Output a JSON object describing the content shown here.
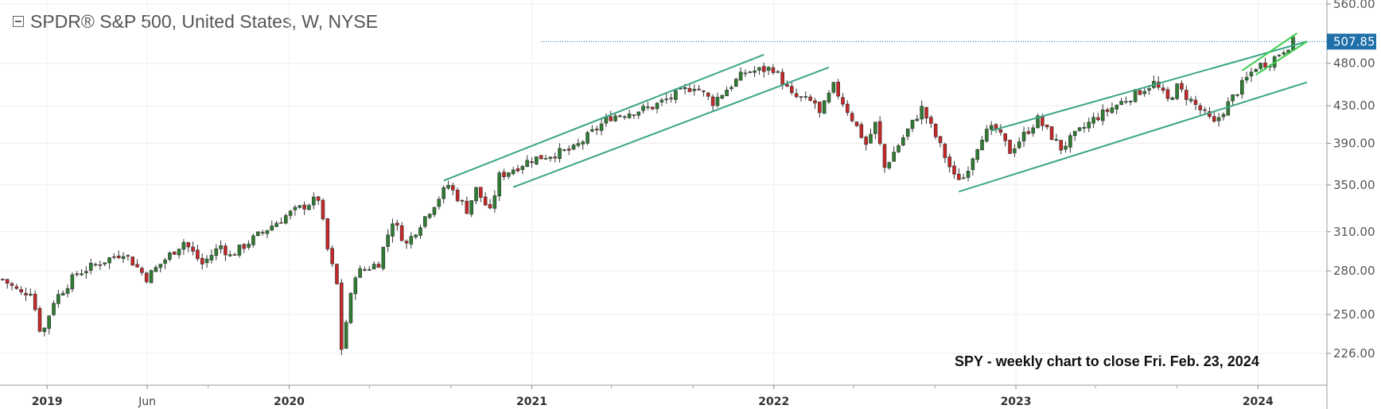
{
  "header": {
    "title": "SPDR® S&P 500, United States, W, NYSE"
  },
  "annotation": "SPY - weekly chart to close Fri. Feb. 23, 2024",
  "colors": {
    "up": "#2e7d32",
    "down": "#c62828",
    "channel": "#3aa586",
    "wedge": "#3ccf4e",
    "price_line": "#1f6fa8"
  },
  "chart_data": {
    "type": "candlestick",
    "title": "SPDR® S&P 500, United States, W, NYSE",
    "ylim": [
      212,
      565
    ],
    "y_ticks": [
      "560.00",
      "480.00",
      "430.00",
      "390.00",
      "350.00",
      "310.00",
      "280.00",
      "250.00",
      "226.00"
    ],
    "current_price": 507.85,
    "current_price_label": "507.85",
    "x_ticks": [
      {
        "label": "2019",
        "date": "2019-01-01",
        "year": true
      },
      {
        "label": "Jun",
        "date": "2019-06-01",
        "year": false
      },
      {
        "label": "2020",
        "date": "2020-01-01",
        "year": true
      },
      {
        "label": "2021",
        "date": "2021-01-01",
        "year": true
      },
      {
        "label": "2022",
        "date": "2022-01-01",
        "year": true
      },
      {
        "label": "2023",
        "date": "2023-01-01",
        "year": true
      },
      {
        "label": "2024",
        "date": "2024-01-01",
        "year": true
      }
    ],
    "x_minor_ticks": [
      "2019-09-01",
      "2020-05-01",
      "2020-09-01",
      "2021-05-01",
      "2021-09-01",
      "2022-05-01",
      "2022-09-01",
      "2023-05-01",
      "2023-09-01"
    ],
    "x_range": [
      "2018-10-22",
      "2024-04-14"
    ],
    "anchors": [
      [
        "2018-10-26",
        274
      ],
      [
        "2018-11-23",
        264
      ],
      [
        "2018-12-07",
        266
      ],
      [
        "2018-12-24",
        236
      ],
      [
        "2019-01-11",
        259
      ],
      [
        "2019-02-15",
        278
      ],
      [
        "2019-04-26",
        294
      ],
      [
        "2019-05-31",
        275
      ],
      [
        "2019-07-26",
        302
      ],
      [
        "2019-08-23",
        285
      ],
      [
        "2019-09-20",
        299
      ],
      [
        "2019-10-04",
        291
      ],
      [
        "2019-12-27",
        323
      ],
      [
        "2020-02-14",
        338
      ],
      [
        "2020-02-28",
        296
      ],
      [
        "2020-03-13",
        270
      ],
      [
        "2020-03-20",
        229
      ],
      [
        "2020-04-10",
        278
      ],
      [
        "2020-05-15",
        286
      ],
      [
        "2020-06-05",
        319
      ],
      [
        "2020-06-26",
        300
      ],
      [
        "2020-08-28",
        350
      ],
      [
        "2020-09-25",
        328
      ],
      [
        "2020-10-09",
        346
      ],
      [
        "2020-10-30",
        326
      ],
      [
        "2020-11-13",
        358
      ],
      [
        "2020-12-31",
        374
      ],
      [
        "2021-03-05",
        384
      ],
      [
        "2021-04-30",
        418
      ],
      [
        "2021-06-30",
        428
      ],
      [
        "2021-09-03",
        453
      ],
      [
        "2021-10-01",
        434
      ],
      [
        "2021-11-19",
        469
      ],
      [
        "2021-12-31",
        474
      ],
      [
        "2022-01-28",
        441
      ],
      [
        "2022-03-04",
        433
      ],
      [
        "2022-03-11",
        420
      ],
      [
        "2022-04-01",
        452
      ],
      [
        "2022-05-20",
        389
      ],
      [
        "2022-06-03",
        410
      ],
      [
        "2022-06-17",
        366
      ],
      [
        "2022-07-29",
        411
      ],
      [
        "2022-08-12",
        427
      ],
      [
        "2022-09-30",
        357
      ],
      [
        "2022-10-14",
        357
      ],
      [
        "2022-11-11",
        398
      ],
      [
        "2022-11-30",
        406
      ],
      [
        "2022-12-23",
        382
      ],
      [
        "2023-02-03",
        415
      ],
      [
        "2023-03-10",
        385
      ],
      [
        "2023-04-28",
        415
      ],
      [
        "2023-07-28",
        456
      ],
      [
        "2023-08-18",
        436
      ],
      [
        "2023-09-01",
        451
      ],
      [
        "2023-10-27",
        410
      ],
      [
        "2023-12-29",
        476
      ],
      [
        "2024-01-19",
        482
      ],
      [
        "2024-02-23",
        508
      ]
    ],
    "channels": [
      {
        "from": [
          "2020-08-21",
          354
        ],
        "to": [
          "2021-12-17",
          491
        ]
      },
      {
        "from": [
          "2020-12-04",
          348
        ],
        "to": [
          "2022-03-25",
          475
        ]
      },
      {
        "from": [
          "2022-11-25",
          403
        ],
        "to": [
          "2024-03-15",
          508
        ]
      },
      {
        "from": [
          "2022-10-07",
          344
        ],
        "to": [
          "2024-03-15",
          457
        ]
      }
    ],
    "wedge": [
      {
        "from": [
          "2023-12-08",
          471
        ],
        "to": [
          "2024-02-29",
          519
        ]
      },
      {
        "from": [
          "2023-12-29",
          466
        ],
        "to": [
          "2024-03-15",
          508
        ]
      }
    ]
  }
}
